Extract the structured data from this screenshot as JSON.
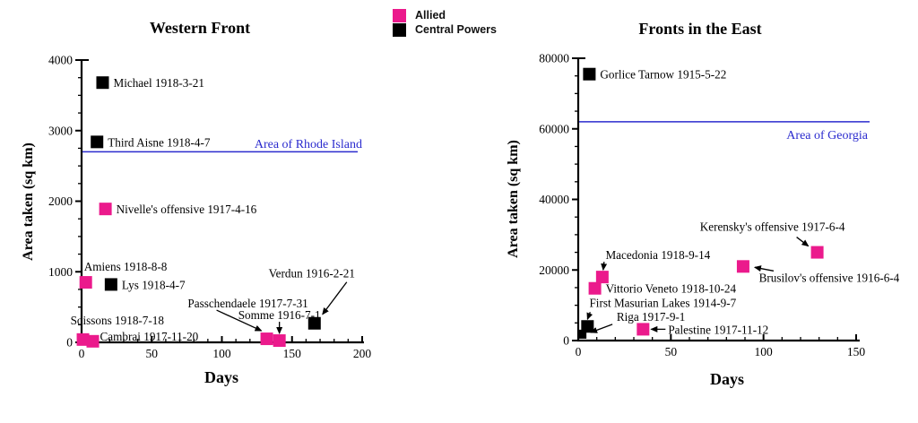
{
  "colors": {
    "allied": "#EB1A8C",
    "central_powers": "#000000",
    "reference_line": "#2B2BCE",
    "axis": "#000000",
    "text": "#000000"
  },
  "legend": {
    "items": [
      {
        "label": "Allied",
        "color": "#EB1A8C"
      },
      {
        "label": "Central Powers",
        "color": "#000000"
      }
    ]
  },
  "chart_data": [
    {
      "type": "scatter",
      "title": "Western Front",
      "xlabel": "Days",
      "ylabel": "Area taken (sq km)",
      "xlim": [
        0,
        200
      ],
      "ylim": [
        0,
        4000
      ],
      "x_ticks": [
        0,
        50,
        100,
        150,
        200
      ],
      "y_ticks": [
        0,
        1000,
        2000,
        3000,
        4000
      ],
      "x_minor_step": 10,
      "y_minor_step": 250,
      "grid": false,
      "legend_position": "top-center-shared",
      "reference_line": {
        "value": 2700,
        "label": "Area of Rhode Island"
      },
      "points": [
        {
          "label": "Michael 1918-3-21",
          "series": "Central Powers",
          "x": 15,
          "y": 3680
        },
        {
          "label": "Third Aisne 1918-4-7",
          "series": "Central Powers",
          "x": 11,
          "y": 2840
        },
        {
          "label": "Nivelle's offensive 1917-4-16",
          "series": "Allied",
          "x": 17,
          "y": 1890
        },
        {
          "label": "Amiens 1918-8-8",
          "series": "Allied",
          "x": 3,
          "y": 850,
          "lo": [
            -2,
            -13
          ],
          "la": "start"
        },
        {
          "label": "Lys 1918-4-7",
          "series": "Central Powers",
          "x": 21,
          "y": 820
        },
        {
          "label": "Soissons 1918-7-18",
          "series": "Allied",
          "x": 1,
          "y": 40,
          "lo": [
            -14,
            -17
          ],
          "la": "start"
        },
        {
          "label": "Cambrai 1917-11-20",
          "series": "Allied",
          "x": 8,
          "y": 15,
          "lo": [
            8,
            -1
          ],
          "la": "start"
        },
        {
          "label": "Passchendaele 1917-7-31",
          "series": "Allied",
          "x": 132,
          "y": 50,
          "lo": [
            -21,
            -35
          ],
          "la": "middle",
          "arrow": [
            -56,
            -32,
            -6,
            -9
          ]
        },
        {
          "label": "Somme 1916-7-1",
          "series": "Allied",
          "x": 141,
          "y": 25,
          "lo": [
            0,
            -24
          ],
          "la": "middle",
          "arrow": [
            0,
            -21,
            0,
            -8
          ]
        },
        {
          "label": "Verdun 1916-2-21",
          "series": "Central Powers",
          "x": 166,
          "y": 270,
          "lo": [
            -3,
            -51
          ],
          "la": "middle",
          "arrow": [
            36,
            -46,
            9,
            -10
          ]
        }
      ]
    },
    {
      "type": "scatter",
      "title": "Fronts in the East",
      "xlabel": "Days",
      "ylabel": "Area taken (sq km)",
      "xlim": [
        0,
        150
      ],
      "ylim": [
        0,
        80000
      ],
      "x_ticks": [
        0,
        50,
        100,
        150
      ],
      "y_ticks": [
        0,
        20000,
        40000,
        60000,
        80000
      ],
      "x_minor_step": 10,
      "y_minor_step": 5000,
      "grid": false,
      "legend_position": "top-center-shared",
      "reference_line": {
        "value": 62000,
        "label": "Area of Georgia"
      },
      "points": [
        {
          "label": "Gorlice Tarnow 1915-5-22",
          "series": "Central Powers",
          "x": 6,
          "y": 75500
        },
        {
          "label": "Kerensky's offensive 1917-6-4",
          "series": "Allied",
          "x": 129,
          "y": 25000,
          "lo": [
            -50,
            -24
          ],
          "la": "middle",
          "arrow": [
            -23,
            -17,
            -10,
            -7
          ]
        },
        {
          "label": "Brusilov's offensive 1916-6-4",
          "series": "Allied",
          "x": 89,
          "y": 21000,
          "lo": [
            96,
            17
          ],
          "la": "middle",
          "arrow": [
            34,
            5,
            13,
            1
          ]
        },
        {
          "label": "Macedonia 1918-9-14",
          "series": "Allied",
          "x": 13,
          "y": 18000,
          "lo": [
            62,
            -20
          ],
          "la": "middle",
          "arrow": [
            2,
            -17,
            1,
            -8
          ]
        },
        {
          "label": "Vittorio Veneto 1918-10-24",
          "series": "Allied",
          "x": 9,
          "y": 14800
        },
        {
          "label": "First Masurian Lakes 1914-9-7",
          "series": "Central Powers",
          "x": 5,
          "y": 4000,
          "lo": [
            84,
            -22
          ],
          "la": "middle",
          "arrow": [
            3,
            -16,
            0,
            -8
          ]
        },
        {
          "label": "Riga 1917-9-1",
          "series": "Central Powers",
          "x": 2,
          "y": 1800,
          "size": 10,
          "lo": [
            77,
            -15
          ],
          "la": "middle",
          "arrow": [
            34,
            -11,
            10,
            -2
          ]
        },
        {
          "label": "Palestine 1917-11-12",
          "series": "Allied",
          "x": 35,
          "y": 3200,
          "lo": [
            28,
            5
          ],
          "la": "start",
          "arrow": [
            25,
            0,
            9,
            0
          ]
        }
      ]
    }
  ]
}
